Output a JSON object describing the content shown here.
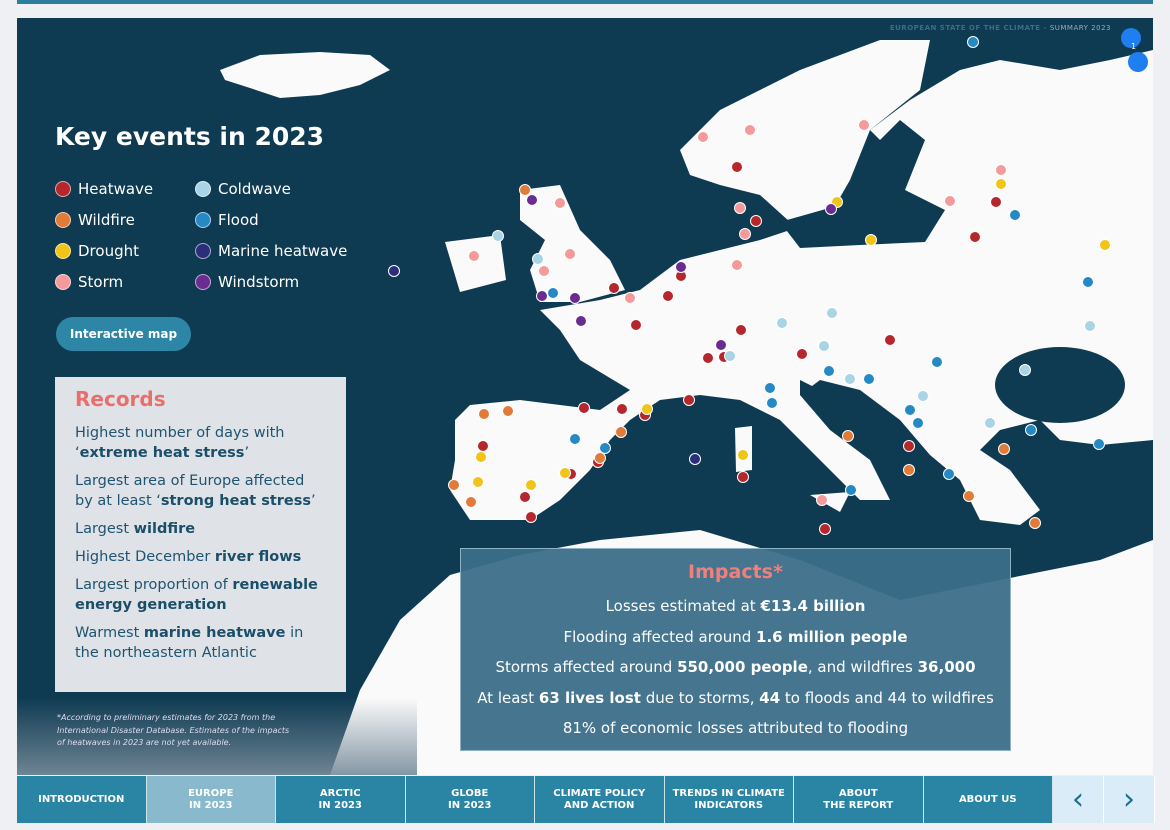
{
  "header": {
    "title": "EUROPEAN STATE OF THE CLIMATE -",
    "subtitle": "SUMMARY 2023",
    "page_indicator": "1"
  },
  "title": "Key events in 2023",
  "legend": [
    {
      "label": "Heatwave",
      "color": "#b5272d"
    },
    {
      "label": "Coldwave",
      "color": "#a9d4e6"
    },
    {
      "label": "Wildfire",
      "color": "#e07b39"
    },
    {
      "label": "Flood",
      "color": "#2589c4"
    },
    {
      "label": "Drought",
      "color": "#f0c419"
    },
    {
      "label": "Marine heatwave",
      "color": "#2b2f7a"
    },
    {
      "label": "Storm",
      "color": "#f49a9a"
    },
    {
      "label": "Windstorm",
      "color": "#6a2c91"
    }
  ],
  "interactive_map_button": "Interactive map",
  "records": {
    "title": "Records",
    "items": [
      {
        "pre": "Highest number of days with ‘",
        "bold": "extreme heat stress",
        "post": "’"
      },
      {
        "pre": "Largest area of Europe affected by at least ‘",
        "bold": "strong heat stress",
        "post": "’"
      },
      {
        "pre": "Largest ",
        "bold": "wildfire",
        "post": ""
      },
      {
        "pre": "Highest December ",
        "bold": "river flows",
        "post": ""
      },
      {
        "pre": "Largest proportion of ",
        "bold": "renewable energy generation",
        "post": ""
      },
      {
        "pre": "Warmest ",
        "bold": "marine heatwave",
        "post": " in the northeastern Atlantic"
      }
    ]
  },
  "footnote": "*According to preliminary estimates for 2023 from the International Disaster Database. Estimates of the impacts of heatwaves in 2023 are not yet available.",
  "impacts": {
    "title": "Impacts*",
    "lines": [
      {
        "pre": "Losses estimated at ",
        "b1": "€13.4 billion",
        "mid": "",
        "b2": "",
        "post": ""
      },
      {
        "pre": "Flooding affected around ",
        "b1": "1.6 million people",
        "mid": "",
        "b2": "",
        "post": ""
      },
      {
        "pre": "Storms affected around ",
        "b1": "550,000 people",
        "mid": ", and wildfires ",
        "b2": "36,000",
        "post": ""
      },
      {
        "pre": "At least ",
        "b1": "63 lives lost",
        "mid": " due to storms, ",
        "b2": "44",
        "post": " to floods and 44 to wildfires"
      },
      {
        "pre": "81% of economic losses attributed to flooding",
        "b1": "",
        "mid": "",
        "b2": "",
        "post": ""
      }
    ]
  },
  "nav": {
    "tabs": [
      {
        "l1": "INTRODUCTION",
        "l2": ""
      },
      {
        "l1": "EUROPE",
        "l2": "IN 2023"
      },
      {
        "l1": "ARCTIC",
        "l2": "IN 2023"
      },
      {
        "l1": "GLOBE",
        "l2": "IN 2023"
      },
      {
        "l1": "CLIMATE POLICY",
        "l2": "AND ACTION"
      },
      {
        "l1": "TRENDS IN CLIMATE",
        "l2": "INDICATORS"
      },
      {
        "l1": "ABOUT",
        "l2": "THE REPORT"
      },
      {
        "l1": "ABOUT US",
        "l2": ""
      }
    ],
    "active": 1,
    "prev": "‹",
    "next": "›"
  }
}
